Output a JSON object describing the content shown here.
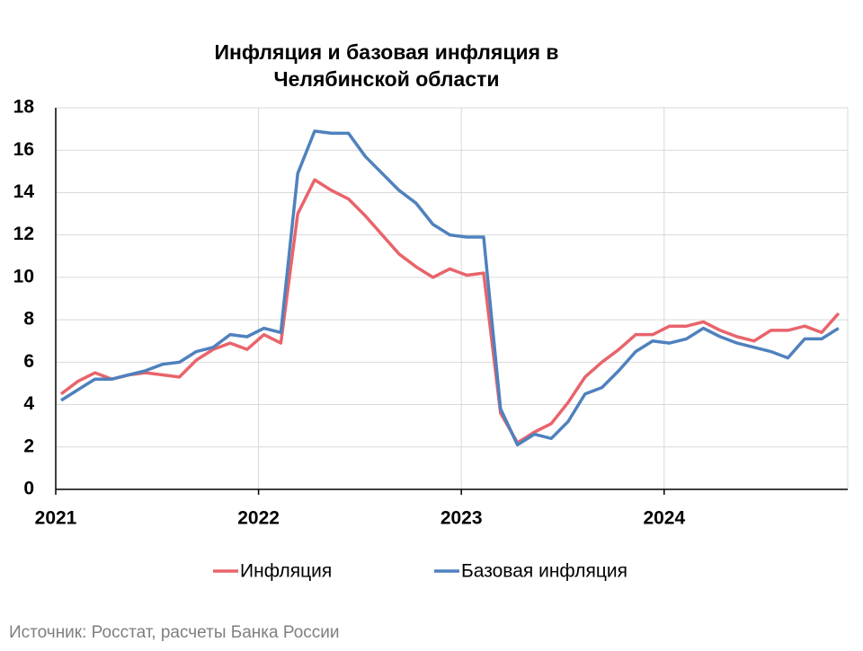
{
  "chart_data": {
    "type": "line",
    "title": [
      "Инфляция и базовая инфляция в",
      "Челябинской области"
    ],
    "categories": [
      "2021",
      null,
      null,
      null,
      null,
      null,
      null,
      null,
      null,
      null,
      null,
      null,
      "2022",
      null,
      null,
      null,
      null,
      null,
      null,
      null,
      null,
      null,
      null,
      null,
      "2023",
      null,
      null,
      null,
      null,
      null,
      null,
      null,
      null,
      null,
      null,
      null,
      "2024",
      null,
      null,
      null,
      null,
      null,
      null,
      null,
      null,
      null,
      null
    ],
    "series": [
      {
        "name": "Инфляция",
        "color": "#e8646b",
        "values": [
          4.5,
          5.1,
          5.5,
          5.2,
          5.4,
          5.5,
          5.4,
          5.3,
          6.1,
          6.6,
          6.9,
          6.6,
          7.3,
          6.9,
          13.0,
          14.6,
          14.1,
          13.7,
          12.9,
          12.0,
          11.1,
          10.5,
          10.0,
          10.4,
          10.1,
          10.2,
          3.6,
          2.2,
          2.7,
          3.1,
          4.1,
          5.3,
          6.0,
          6.6,
          7.3,
          7.3,
          7.7,
          7.7,
          7.9,
          7.5,
          7.2,
          7.0,
          7.5,
          7.5,
          7.7,
          7.4,
          8.3
        ]
      },
      {
        "name": "Базовая инфляция",
        "color": "#4f81bd",
        "values": [
          4.2,
          4.7,
          5.2,
          5.2,
          5.4,
          5.6,
          5.9,
          6.0,
          6.5,
          6.7,
          7.3,
          7.2,
          7.6,
          7.4,
          14.9,
          16.9,
          16.8,
          16.8,
          15.7,
          14.9,
          14.1,
          13.5,
          12.5,
          12.0,
          11.9,
          11.9,
          3.8,
          2.1,
          2.6,
          2.4,
          3.2,
          4.5,
          4.8,
          5.6,
          6.5,
          7.0,
          6.9,
          7.1,
          7.6,
          7.2,
          6.9,
          6.7,
          6.5,
          6.2,
          7.1,
          7.1,
          7.6
        ]
      }
    ],
    "ylim": [
      0,
      18
    ],
    "yticks": [
      0,
      2,
      4,
      6,
      8,
      10,
      12,
      14,
      16,
      18
    ],
    "grid": true,
    "legend": "bottom",
    "source": "Источник: Росстат, расчеты Банка России"
  }
}
